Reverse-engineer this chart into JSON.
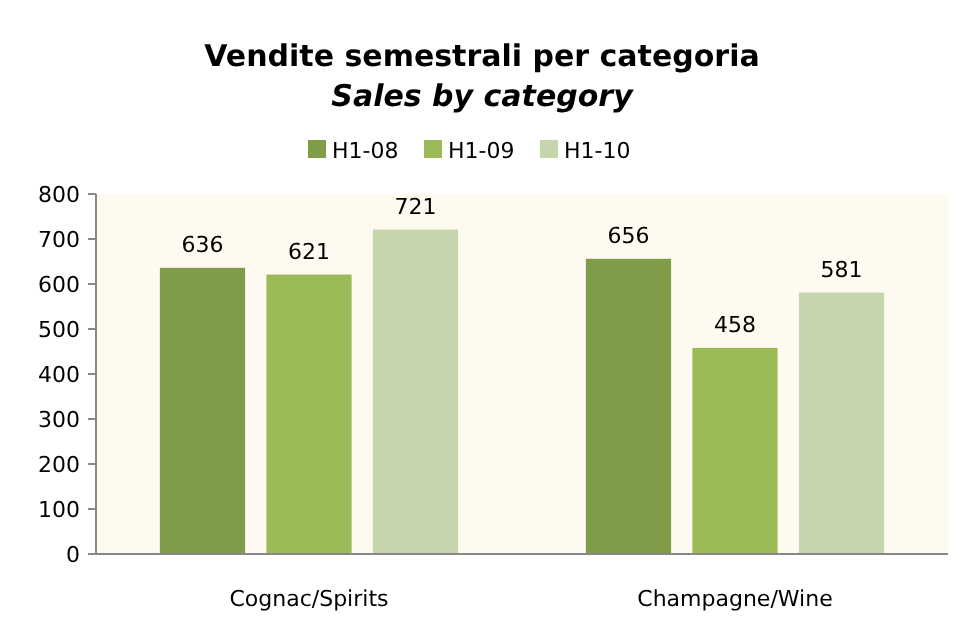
{
  "chart_data": {
    "type": "bar",
    "title": "Vendite semestrali per categoria",
    "subtitle": "Sales by category",
    "categories": [
      "Cognac/Spirits",
      "Champagne/Wine"
    ],
    "series": [
      {
        "name": "H1-08",
        "color": "#7f9c48",
        "values": [
          636,
          656
        ]
      },
      {
        "name": "H1-09",
        "color": "#9bbb59",
        "values": [
          621,
          458
        ]
      },
      {
        "name": "H1-10",
        "color": "#c6d6ac",
        "values": [
          721,
          581
        ]
      }
    ],
    "ylim": [
      0,
      800
    ],
    "yticks": [
      0,
      100,
      200,
      300,
      400,
      500,
      600,
      700,
      800
    ],
    "grid": false,
    "legend": "top",
    "data_labels": true
  }
}
